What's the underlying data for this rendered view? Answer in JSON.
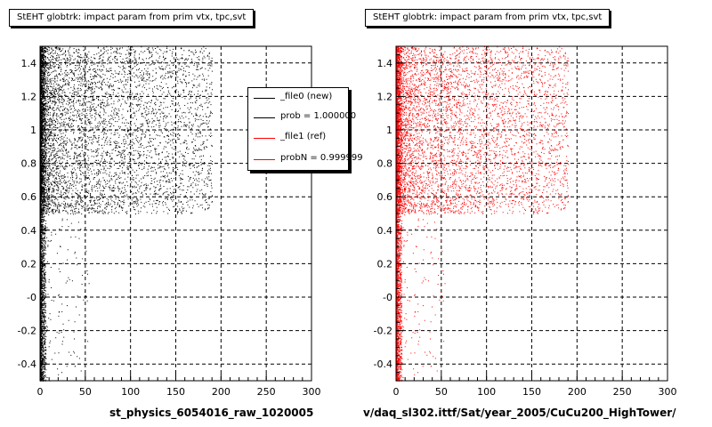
{
  "chart_data": [
    {
      "type": "scatter",
      "title": "StEHT globtrk: impact param from prim vtx, tpc,svt",
      "xlabel": "st_physics_6054016_raw_1020005",
      "ylabel": "",
      "xlim": [
        0,
        300
      ],
      "ylim": [
        -0.5,
        1.5
      ],
      "x_ticks": [
        0,
        50,
        100,
        150,
        200,
        250,
        300
      ],
      "y_ticks": [
        -0.4,
        -0.2,
        0,
        0.2,
        0.4,
        0.6,
        0.8,
        1,
        1.2,
        1.4
      ],
      "y_tick_labels": [
        "-0.4",
        "-0.2",
        "-0",
        "0.2",
        "0.4",
        "0.6",
        "0.8",
        "1",
        "1.2",
        "1.4"
      ],
      "grid": true,
      "marker_color": "#000000",
      "legend_placement": "top-right",
      "legend": [
        {
          "label": "_file0 (new)",
          "color": "#000000"
        },
        {
          "label": "prob = 1.000000",
          "color": "#000000"
        },
        {
          "label": "_file1 (ref)",
          "color": "#ff0000"
        },
        {
          "label": "probN = 0.999999",
          "color": "#ff0000"
        }
      ]
    },
    {
      "type": "scatter",
      "title": "StEHT globtrk: impact param from prim vtx, tpc,svt",
      "xlabel": "v/daq_sl302.ittf/Sat/year_2005/CuCu200_HighTower/",
      "ylabel": "",
      "xlim": [
        0,
        300
      ],
      "ylim": [
        -0.5,
        1.5
      ],
      "x_ticks": [
        0,
        50,
        100,
        150,
        200,
        250,
        300
      ],
      "y_ticks": [
        -0.4,
        -0.2,
        0,
        0.2,
        0.4,
        0.6,
        0.8,
        1,
        1.2,
        1.4
      ],
      "y_tick_labels": [
        "-0.4",
        "-0.2",
        "-0",
        "0.2",
        "0.4",
        "0.6",
        "0.8",
        "1",
        "1.2",
        "1.4"
      ],
      "grid": true,
      "marker_color": "#ff0000"
    }
  ]
}
